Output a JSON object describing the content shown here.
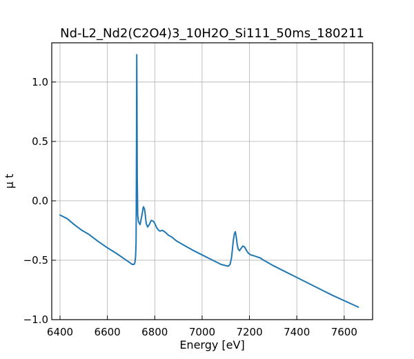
{
  "chart_data": {
    "type": "line",
    "title": "Nd-L2_Nd2(C2O4)3_10H2O_Si111_50ms_180211",
    "xlabel": "Energy [eV]",
    "ylabel": "μ t",
    "xlim": [
      6365,
      7720
    ],
    "ylim": [
      -1.0,
      1.33
    ],
    "xticks": [
      6400,
      6600,
      6800,
      7000,
      7200,
      7400,
      7600
    ],
    "yticks": [
      -1.0,
      -0.5,
      0.0,
      0.5,
      1.0
    ],
    "xtick_labels": [
      "6400",
      "6600",
      "6800",
      "7000",
      "7200",
      "7400",
      "7600"
    ],
    "ytick_labels": [
      "−1.0",
      "−0.5",
      "0.0",
      "0.5",
      "1.0"
    ],
    "grid": true,
    "series": [
      {
        "color": "#1f77b4",
        "x": [
          6400,
          6430,
          6460,
          6490,
          6520,
          6560,
          6600,
          6640,
          6680,
          6705,
          6712,
          6716,
          6719,
          6721,
          6722,
          6723,
          6724,
          6725,
          6726,
          6728,
          6730,
          6732,
          6738,
          6746,
          6752,
          6757,
          6760,
          6764,
          6770,
          6777,
          6785,
          6793,
          6800,
          6808,
          6815,
          6822,
          6832,
          6845,
          6858,
          6872,
          6890,
          6920,
          6960,
          7000,
          7040,
          7080,
          7110,
          7118,
          7124,
          7128,
          7132,
          7136,
          7140,
          7144,
          7148,
          7152,
          7158,
          7165,
          7172,
          7180,
          7188,
          7195,
          7205,
          7215,
          7230,
          7245,
          7260,
          7300,
          7350,
          7400,
          7450,
          7500,
          7550,
          7600,
          7660
        ],
        "y": [
          -0.12,
          -0.15,
          -0.2,
          -0.245,
          -0.28,
          -0.34,
          -0.395,
          -0.445,
          -0.5,
          -0.535,
          -0.535,
          -0.52,
          -0.47,
          -0.35,
          -0.05,
          0.6,
          1.23,
          0.85,
          0.2,
          -0.12,
          -0.16,
          -0.18,
          -0.2,
          -0.12,
          -0.05,
          -0.07,
          -0.12,
          -0.19,
          -0.22,
          -0.2,
          -0.165,
          -0.17,
          -0.19,
          -0.225,
          -0.245,
          -0.255,
          -0.248,
          -0.265,
          -0.29,
          -0.305,
          -0.335,
          -0.37,
          -0.415,
          -0.455,
          -0.495,
          -0.535,
          -0.55,
          -0.535,
          -0.48,
          -0.41,
          -0.33,
          -0.28,
          -0.26,
          -0.3,
          -0.365,
          -0.405,
          -0.42,
          -0.4,
          -0.38,
          -0.39,
          -0.42,
          -0.44,
          -0.455,
          -0.46,
          -0.47,
          -0.48,
          -0.5,
          -0.545,
          -0.595,
          -0.645,
          -0.695,
          -0.745,
          -0.795,
          -0.84,
          -0.895
        ]
      }
    ]
  }
}
